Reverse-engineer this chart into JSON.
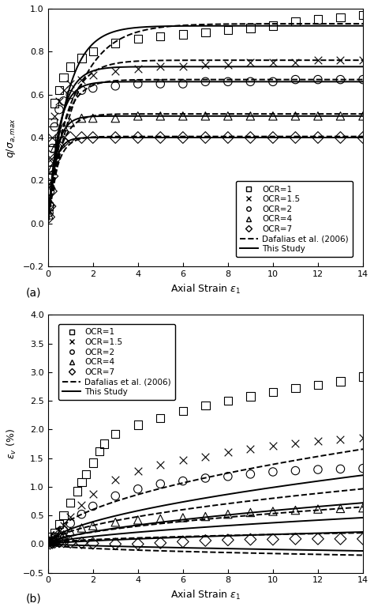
{
  "fig_width": 4.74,
  "fig_height": 7.68,
  "dpi": 100,
  "background_color": "#ffffff",
  "subplot_a": {
    "xlabel": "Axial Strain $\\epsilon_1$",
    "ylabel": "$q/\\sigma_{a,max}$",
    "xlim": [
      0,
      14
    ],
    "ylim": [
      -0.2,
      1.0
    ],
    "xticks": [
      0,
      2,
      4,
      6,
      8,
      10,
      12,
      14
    ],
    "yticks": [
      -0.2,
      0,
      0.2,
      0.4,
      0.6,
      0.8,
      1.0
    ],
    "label": "(a)",
    "ocr_labels": [
      "OCR=1",
      "OCR=1.5",
      "OCR=2",
      "OCR=4",
      "OCR=7"
    ],
    "ocr_markers": [
      "s",
      "x",
      "o",
      "^",
      "D"
    ],
    "data_scatter": {
      "OCR1": [
        [
          0.05,
          0.1,
          0.15,
          0.2,
          0.3,
          0.5,
          0.7,
          1.0,
          1.5,
          2.0,
          3.0,
          4.0,
          5.0,
          6.0,
          7.0,
          8.0,
          9.0,
          10.0,
          11.0,
          12.0,
          13.0,
          14.0
        ],
        [
          0.08,
          0.25,
          0.38,
          0.47,
          0.56,
          0.62,
          0.68,
          0.73,
          0.77,
          0.8,
          0.84,
          0.86,
          0.87,
          0.88,
          0.89,
          0.9,
          0.91,
          0.92,
          0.94,
          0.95,
          0.96,
          0.97
        ]
      ],
      "OCR15": [
        [
          0.05,
          0.1,
          0.15,
          0.2,
          0.3,
          0.5,
          0.7,
          1.0,
          1.5,
          2.0,
          3.0,
          4.0,
          5.0,
          6.0,
          7.0,
          8.0,
          9.0,
          10.0,
          11.0,
          12.0,
          13.0,
          14.0
        ],
        [
          0.06,
          0.18,
          0.3,
          0.4,
          0.5,
          0.57,
          0.62,
          0.65,
          0.67,
          0.69,
          0.71,
          0.72,
          0.73,
          0.73,
          0.74,
          0.74,
          0.75,
          0.75,
          0.75,
          0.76,
          0.76,
          0.76
        ]
      ],
      "OCR2": [
        [
          0.05,
          0.1,
          0.15,
          0.2,
          0.3,
          0.5,
          0.7,
          1.0,
          1.5,
          2.0,
          3.0,
          4.0,
          5.0,
          6.0,
          7.0,
          8.0,
          9.0,
          10.0,
          11.0,
          12.0,
          13.0,
          14.0
        ],
        [
          0.05,
          0.15,
          0.25,
          0.35,
          0.45,
          0.53,
          0.57,
          0.6,
          0.62,
          0.63,
          0.64,
          0.65,
          0.65,
          0.65,
          0.66,
          0.66,
          0.66,
          0.66,
          0.67,
          0.67,
          0.67,
          0.67
        ]
      ],
      "OCR4": [
        [
          0.05,
          0.1,
          0.15,
          0.2,
          0.3,
          0.5,
          0.7,
          1.0,
          1.5,
          2.0,
          3.0,
          4.0,
          5.0,
          6.0,
          7.0,
          8.0,
          9.0,
          10.0,
          11.0,
          12.0,
          13.0,
          14.0
        ],
        [
          0.04,
          0.1,
          0.18,
          0.26,
          0.35,
          0.42,
          0.45,
          0.47,
          0.49,
          0.49,
          0.49,
          0.5,
          0.5,
          0.5,
          0.5,
          0.5,
          0.5,
          0.5,
          0.5,
          0.5,
          0.5,
          0.5
        ]
      ],
      "OCR7": [
        [
          0.05,
          0.1,
          0.15,
          0.2,
          0.3,
          0.5,
          0.7,
          1.0,
          1.5,
          2.0,
          3.0,
          4.0,
          5.0,
          6.0,
          7.0,
          8.0,
          9.0,
          10.0,
          11.0,
          12.0,
          13.0,
          14.0
        ],
        [
          0.03,
          0.08,
          0.15,
          0.22,
          0.3,
          0.36,
          0.38,
          0.4,
          0.4,
          0.4,
          0.4,
          0.4,
          0.4,
          0.4,
          0.4,
          0.4,
          0.4,
          0.4,
          0.4,
          0.4,
          0.4,
          0.4
        ]
      ]
    },
    "this_study": [
      {
        "asymptote": 0.92,
        "k": 1.2
      },
      {
        "asymptote": 0.73,
        "k": 1.8
      },
      {
        "asymptote": 0.66,
        "k": 2.2
      },
      {
        "asymptote": 0.5,
        "k": 2.8
      },
      {
        "asymptote": 0.4,
        "k": 3.5
      }
    ],
    "dafalias": [
      {
        "asymptote": 0.93,
        "k": 0.8
      },
      {
        "asymptote": 0.76,
        "k": 1.3
      },
      {
        "asymptote": 0.67,
        "k": 1.6
      },
      {
        "asymptote": 0.51,
        "k": 2.0
      },
      {
        "asymptote": 0.405,
        "k": 2.5
      }
    ]
  },
  "subplot_b": {
    "xlabel": "Axial Strain $\\epsilon_1$",
    "ylabel": "$\\epsilon_v$ (%)",
    "xlim": [
      0,
      14
    ],
    "ylim": [
      -0.5,
      4.0
    ],
    "xticks": [
      0,
      2,
      4,
      6,
      8,
      10,
      12,
      14
    ],
    "yticks": [
      -0.5,
      0.0,
      0.5,
      1.0,
      1.5,
      2.0,
      2.5,
      3.0,
      3.5,
      4.0
    ],
    "label": "(b)",
    "ocr_labels": [
      "OCR=1",
      "OCR=1.5",
      "OCR=2",
      "OCR=4",
      "OCR=7"
    ],
    "ocr_markers": [
      "s",
      "x",
      "o",
      "^",
      "D"
    ],
    "data_scatter": {
      "OCR1": [
        [
          0.1,
          0.2,
          0.3,
          0.5,
          0.7,
          1.0,
          1.3,
          1.5,
          1.7,
          2.0,
          2.3,
          2.5,
          3.0,
          4.0,
          5.0,
          6.0,
          7.0,
          8.0,
          9.0,
          10.0,
          11.0,
          12.0,
          13.0,
          14.0
        ],
        [
          0.05,
          0.12,
          0.2,
          0.35,
          0.5,
          0.72,
          0.92,
          1.08,
          1.22,
          1.42,
          1.62,
          1.75,
          1.92,
          2.08,
          2.2,
          2.32,
          2.42,
          2.5,
          2.58,
          2.65,
          2.72,
          2.78,
          2.84,
          2.92
        ]
      ],
      "OCR15": [
        [
          0.1,
          0.2,
          0.3,
          0.5,
          0.7,
          1.0,
          1.5,
          2.0,
          3.0,
          4.0,
          5.0,
          6.0,
          7.0,
          8.0,
          9.0,
          10.0,
          11.0,
          12.0,
          13.0,
          14.0
        ],
        [
          0.04,
          0.08,
          0.14,
          0.22,
          0.32,
          0.48,
          0.68,
          0.88,
          1.12,
          1.28,
          1.38,
          1.46,
          1.52,
          1.6,
          1.66,
          1.72,
          1.76,
          1.8,
          1.83,
          1.86
        ]
      ],
      "OCR2": [
        [
          0.1,
          0.2,
          0.3,
          0.5,
          0.7,
          1.0,
          1.5,
          2.0,
          3.0,
          4.0,
          5.0,
          6.0,
          7.0,
          8.0,
          9.0,
          10.0,
          11.0,
          12.0,
          13.0,
          14.0
        ],
        [
          0.03,
          0.06,
          0.1,
          0.16,
          0.24,
          0.36,
          0.52,
          0.66,
          0.84,
          0.96,
          1.05,
          1.1,
          1.15,
          1.18,
          1.22,
          1.26,
          1.28,
          1.3,
          1.31,
          1.32
        ]
      ],
      "OCR4": [
        [
          0.1,
          0.2,
          0.3,
          0.5,
          0.7,
          1.0,
          1.5,
          2.0,
          3.0,
          4.0,
          5.0,
          6.0,
          7.0,
          8.0,
          9.0,
          10.0,
          11.0,
          12.0,
          13.0,
          14.0
        ],
        [
          0.02,
          0.04,
          0.07,
          0.11,
          0.16,
          0.22,
          0.28,
          0.32,
          0.38,
          0.42,
          0.44,
          0.46,
          0.48,
          0.52,
          0.55,
          0.57,
          0.59,
          0.61,
          0.62,
          0.63
        ]
      ],
      "OCR7": [
        [
          0.1,
          0.2,
          0.3,
          0.5,
          0.7,
          1.0,
          1.5,
          2.0,
          3.0,
          4.0,
          5.0,
          6.0,
          7.0,
          8.0,
          9.0,
          10.0,
          11.0,
          12.0,
          13.0,
          14.0
        ],
        [
          0.01,
          0.02,
          0.03,
          0.04,
          0.04,
          0.03,
          0.02,
          0.01,
          0.0,
          0.0,
          0.02,
          0.04,
          0.06,
          0.07,
          0.08,
          0.08,
          0.09,
          0.09,
          0.09,
          0.09
        ]
      ]
    },
    "this_study": [
      {
        "a": 0.26,
        "b": 0.58
      },
      {
        "a": 0.14,
        "b": 0.62
      },
      {
        "a": 0.085,
        "b": 0.64
      },
      {
        "a": 0.035,
        "b": 0.68
      },
      {
        "a": -0.018,
        "b": 0.72
      }
    ],
    "dafalias": [
      {
        "a": 0.42,
        "b": 0.52
      },
      {
        "a": 0.22,
        "b": 0.56
      },
      {
        "a": 0.14,
        "b": 0.58
      },
      {
        "a": 0.055,
        "b": 0.48
      },
      {
        "a": -0.055,
        "b": 0.48
      }
    ]
  },
  "line_color": "#000000",
  "marker_size": 4,
  "line_width": 1.4,
  "font_size": 9,
  "legend_font_size": 7.5
}
